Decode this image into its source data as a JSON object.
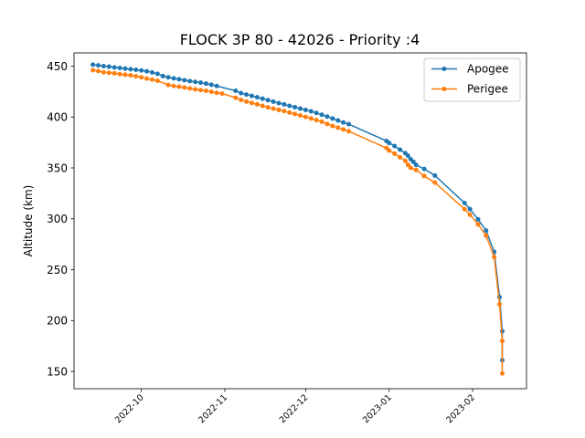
{
  "chart_data": {
    "type": "line",
    "title": "FLOCK 3P 80 - 42026 - Priority :4",
    "xlabel": "",
    "ylabel": "Altitude (km)",
    "x_ticks": [
      "2022-10",
      "2022-11",
      "2022-12",
      "2023-01",
      "2023-02"
    ],
    "y_ticks": [
      150,
      200,
      250,
      300,
      350,
      400,
      450
    ],
    "xlim": [
      "2022-09-06",
      "2023-02-21"
    ],
    "ylim": [
      133,
      463
    ],
    "grid": false,
    "legend_position": "top-right",
    "series": [
      {
        "name": "Apogee",
        "color": "#1f77b4",
        "points": [
          [
            "2022-09-13",
            451.5
          ],
          [
            "2022-09-15",
            450.8
          ],
          [
            "2022-09-17",
            450.0
          ],
          [
            "2022-09-19",
            449.5
          ],
          [
            "2022-09-21",
            448.8
          ],
          [
            "2022-09-23",
            448.2
          ],
          [
            "2022-09-25",
            447.6
          ],
          [
            "2022-09-27",
            447.0
          ],
          [
            "2022-09-29",
            446.4
          ],
          [
            "2022-10-01",
            445.7
          ],
          [
            "2022-10-03",
            445.0
          ],
          [
            "2022-10-05",
            443.8
          ],
          [
            "2022-10-07",
            442.5
          ],
          [
            "2022-10-09",
            440.2
          ],
          [
            "2022-10-11",
            439.0
          ],
          [
            "2022-10-13",
            438.0
          ],
          [
            "2022-10-15",
            437.1
          ],
          [
            "2022-10-17",
            436.2
          ],
          [
            "2022-10-19",
            435.3
          ],
          [
            "2022-10-21",
            434.5
          ],
          [
            "2022-10-23",
            433.8
          ],
          [
            "2022-10-25",
            432.9
          ],
          [
            "2022-10-27",
            431.7
          ],
          [
            "2022-10-29",
            430.5
          ],
          [
            "2022-11-05",
            425.8
          ],
          [
            "2022-11-07",
            423.5
          ],
          [
            "2022-11-09",
            422.1
          ],
          [
            "2022-11-11",
            420.8
          ],
          [
            "2022-11-13",
            419.4
          ],
          [
            "2022-11-15",
            418.0
          ],
          [
            "2022-11-17",
            416.6
          ],
          [
            "2022-11-19",
            415.1
          ],
          [
            "2022-11-21",
            413.7
          ],
          [
            "2022-11-23",
            412.4
          ],
          [
            "2022-11-25",
            411.0
          ],
          [
            "2022-11-27",
            409.7
          ],
          [
            "2022-11-29",
            408.3
          ],
          [
            "2022-12-01",
            407.0
          ],
          [
            "2022-12-03",
            405.6
          ],
          [
            "2022-12-05",
            404.0
          ],
          [
            "2022-12-07",
            402.3
          ],
          [
            "2022-12-09",
            400.5
          ],
          [
            "2022-12-11",
            398.5
          ],
          [
            "2022-12-13",
            396.6
          ],
          [
            "2022-12-15",
            394.6
          ],
          [
            "2022-12-17",
            393.0
          ],
          [
            "2022-12-31",
            376.5
          ],
          [
            "2023-01-01",
            374.5
          ],
          [
            "2023-01-03",
            371.5
          ],
          [
            "2023-01-05",
            368.0
          ],
          [
            "2023-01-07",
            364.5
          ],
          [
            "2023-01-08",
            362.0
          ],
          [
            "2023-01-09",
            358.5
          ],
          [
            "2023-01-10",
            356.0
          ],
          [
            "2023-01-11",
            353.0
          ],
          [
            "2023-01-14",
            349.0
          ],
          [
            "2023-01-18",
            342.5
          ],
          [
            "2023-01-29",
            315.5
          ],
          [
            "2023-01-31",
            309.5
          ],
          [
            "2023-02-03",
            299.5
          ],
          [
            "2023-02-06",
            288.5
          ],
          [
            "2023-02-09",
            267.5
          ],
          [
            "2023-02-11",
            223.0
          ],
          [
            "2023-02-12",
            189.5
          ],
          [
            "2023-02-12",
            161.0
          ]
        ]
      },
      {
        "name": "Perigee",
        "color": "#ff7f0e",
        "points": [
          [
            "2022-09-13",
            446.0
          ],
          [
            "2022-09-15",
            445.2
          ],
          [
            "2022-09-17",
            444.0
          ],
          [
            "2022-09-19",
            443.5
          ],
          [
            "2022-09-21",
            443.0
          ],
          [
            "2022-09-23",
            442.2
          ],
          [
            "2022-09-25",
            441.6
          ],
          [
            "2022-09-27",
            441.0
          ],
          [
            "2022-09-29",
            440.0
          ],
          [
            "2022-10-01",
            439.0
          ],
          [
            "2022-10-03",
            437.8
          ],
          [
            "2022-10-05",
            436.8
          ],
          [
            "2022-10-07",
            435.6
          ],
          [
            "2022-10-11",
            431.5
          ],
          [
            "2022-10-13",
            430.5
          ],
          [
            "2022-10-15",
            429.8
          ],
          [
            "2022-10-17",
            429.0
          ],
          [
            "2022-10-19",
            428.0
          ],
          [
            "2022-10-21",
            427.2
          ],
          [
            "2022-10-23",
            426.5
          ],
          [
            "2022-10-25",
            425.8
          ],
          [
            "2022-10-27",
            424.8
          ],
          [
            "2022-10-29",
            423.8
          ],
          [
            "2022-10-31",
            423.0
          ],
          [
            "2022-11-05",
            419.0
          ],
          [
            "2022-11-07",
            416.8
          ],
          [
            "2022-11-09",
            415.2
          ],
          [
            "2022-11-11",
            413.8
          ],
          [
            "2022-11-13",
            412.5
          ],
          [
            "2022-11-15",
            411.0
          ],
          [
            "2022-11-17",
            409.5
          ],
          [
            "2022-11-19",
            408.3
          ],
          [
            "2022-11-21",
            407.0
          ],
          [
            "2022-11-23",
            405.8
          ],
          [
            "2022-11-25",
            404.4
          ],
          [
            "2022-11-27",
            403.0
          ],
          [
            "2022-11-29",
            401.6
          ],
          [
            "2022-12-01",
            400.1
          ],
          [
            "2022-12-03",
            398.6
          ],
          [
            "2022-12-05",
            397.0
          ],
          [
            "2022-12-07",
            395.4
          ],
          [
            "2022-12-09",
            393.2
          ],
          [
            "2022-12-11",
            391.2
          ],
          [
            "2022-12-13",
            389.5
          ],
          [
            "2022-12-15",
            387.8
          ],
          [
            "2022-12-17",
            386.0
          ],
          [
            "2022-12-31",
            369.5
          ],
          [
            "2023-01-01",
            367.0
          ],
          [
            "2023-01-03",
            364.0
          ],
          [
            "2023-01-05",
            360.5
          ],
          [
            "2023-01-07",
            357.0
          ],
          [
            "2023-01-08",
            353.0
          ],
          [
            "2023-01-09",
            350.0
          ],
          [
            "2023-01-11",
            348.0
          ],
          [
            "2023-01-14",
            342.0
          ],
          [
            "2023-01-18",
            335.5
          ],
          [
            "2023-01-29",
            309.5
          ],
          [
            "2023-01-31",
            304.0
          ],
          [
            "2023-02-03",
            294.5
          ],
          [
            "2023-02-06",
            283.5
          ],
          [
            "2023-02-09",
            262.5
          ],
          [
            "2023-02-11",
            216.0
          ],
          [
            "2023-02-12",
            180.0
          ],
          [
            "2023-02-12",
            148.0
          ]
        ]
      }
    ]
  }
}
